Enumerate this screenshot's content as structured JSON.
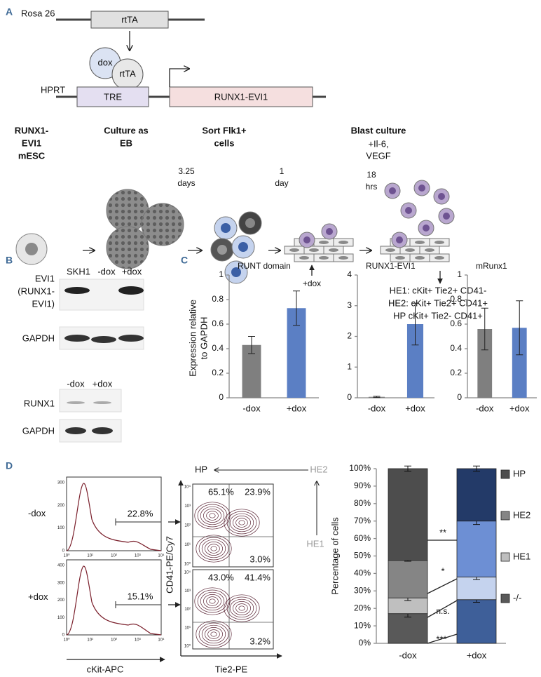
{
  "panel_a": {
    "label": "A",
    "rosa": "Rosa 26",
    "rtta_box": "rtTA",
    "dox": "dox",
    "rtta_circle": "rtTA",
    "hprt": "HPRT",
    "tre": "TRE",
    "construct": "RUNX1-EVI1",
    "steps": [
      {
        "lines": [
          "RUNX1-",
          "EVI1",
          "mESC"
        ]
      },
      {
        "lines": [
          "Culture as",
          "EB"
        ]
      },
      {
        "lines": [
          "Sort Flk1+",
          "cells"
        ]
      },
      {
        "lines": [
          "Blast culture"
        ],
        "sub": [
          "+Il-6,",
          "VEGF"
        ]
      }
    ],
    "durations": [
      [
        "3.25",
        "days"
      ],
      [
        "1",
        "day"
      ],
      [
        "18",
        "hrs"
      ]
    ],
    "dox_add": "+dox",
    "outcomes": [
      "HE1: cKit+ Tie2+ CD41-",
      "HE2: cKit+ Tie2+ CD41+",
      "HP cKit+ Tie2- CD41+"
    ]
  },
  "panel_b": {
    "label": "B",
    "top_lanes": [
      "SKH1",
      "-dox",
      "+dox"
    ],
    "evi1_label": [
      "EVI1",
      "(RUNX1-",
      "EVI1)"
    ],
    "gapdh": "GAPDH",
    "bottom_lanes": [
      "-dox",
      "+dox"
    ],
    "runx1": "RUNX1",
    "gapdh2": "GAPDH"
  },
  "panel_c": {
    "label": "C",
    "ylabel": [
      "Expression relative",
      "to GAPDH"
    ]
  },
  "chart_data": [
    {
      "type": "bar",
      "title": "RUNT domain",
      "categories": [
        "-dox",
        "+dox"
      ],
      "values": [
        0.43,
        0.73
      ],
      "errors": [
        0.07,
        0.14
      ],
      "colors": [
        "#7f7f7f",
        "#5b7fc4"
      ],
      "ylim": [
        0,
        1
      ],
      "yticks": [
        0,
        0.2,
        0.4,
        0.6,
        0.8,
        1
      ]
    },
    {
      "type": "bar",
      "title": "RUNX1-EVI1",
      "categories": [
        "-dox",
        "+dox"
      ],
      "values": [
        0.03,
        2.4
      ],
      "errors": [
        0.02,
        0.68
      ],
      "colors": [
        "#7f7f7f",
        "#5b7fc4"
      ],
      "ylim": [
        0,
        4
      ],
      "yticks": [
        0,
        1,
        2,
        3,
        4
      ]
    },
    {
      "type": "bar",
      "title": "mRunx1",
      "categories": [
        "-dox",
        "+dox"
      ],
      "values": [
        0.56,
        0.57
      ],
      "errors": [
        0.17,
        0.22
      ],
      "colors": [
        "#7f7f7f",
        "#5b7fc4"
      ],
      "ylim": [
        0,
        1
      ],
      "yticks": [
        0,
        0.2,
        0.4,
        0.6,
        0.8,
        1
      ]
    },
    {
      "type": "stacked_bar",
      "ylabel": "Percentage of cells",
      "categories": [
        "-dox",
        "+dox"
      ],
      "series": [
        {
          "name": "-/-",
          "colors": [
            "#595959",
            "#3e5f99"
          ],
          "values": [
            17,
            25
          ],
          "errors": [
            2,
            1.5
          ]
        },
        {
          "name": "HE1",
          "colors": [
            "#bfbfbf",
            "#c5d3ee"
          ],
          "values": [
            9,
            13
          ],
          "errors": [
            1.5,
            1.5
          ]
        },
        {
          "name": "HE2",
          "colors": [
            "#858585",
            "#6d8fd4"
          ],
          "values": [
            21.5,
            32
          ],
          "errors": [
            0.5,
            2
          ]
        },
        {
          "name": "HP",
          "colors": [
            "#4d4d4d",
            "#233a68"
          ],
          "values": [
            52.5,
            30
          ],
          "errors": [
            1.5,
            1.5
          ]
        }
      ],
      "ylim": [
        0,
        100
      ],
      "yticks": [
        {
          "value": 0,
          "label": "0%"
        },
        {
          "value": 10,
          "label": "10%"
        },
        {
          "value": 20,
          "label": "20%"
        },
        {
          "value": 30,
          "label": "30%"
        },
        {
          "value": 40,
          "label": "40%"
        },
        {
          "value": 50,
          "label": "50%"
        },
        {
          "value": 60,
          "label": "60%"
        },
        {
          "value": 70,
          "label": "70%"
        },
        {
          "value": 80,
          "label": "80%"
        },
        {
          "value": 90,
          "label": "90%"
        },
        {
          "value": 100,
          "label": "100%"
        }
      ],
      "annotations": [
        "**",
        "*",
        "n.s.",
        "***"
      ]
    }
  ],
  "panel_d": {
    "label": "D",
    "conditions": [
      "-dox",
      "+dox"
    ],
    "histograms": [
      {
        "gate": "22.8%",
        "yticks": [
          0,
          100,
          200,
          300
        ]
      },
      {
        "gate": "15.1%",
        "yticks": [
          0,
          100,
          200,
          300,
          400
        ]
      }
    ],
    "log_ticks": [
      "10⁰",
      "10¹",
      "10²",
      "10³",
      "10⁴"
    ],
    "hist_xlabel": "cKit-APC",
    "contours": [
      {
        "quadrants": [
          "65.1%",
          "23.9%",
          "3.0%"
        ]
      },
      {
        "quadrants": [
          "43.0%",
          "41.4%",
          "3.2%"
        ]
      }
    ],
    "contour_ylabel": "CD41-PE/Cy7",
    "contour_xlabel": "Tie2-PE",
    "hp": "HP",
    "he2": "HE2",
    "he1": "HE1"
  }
}
